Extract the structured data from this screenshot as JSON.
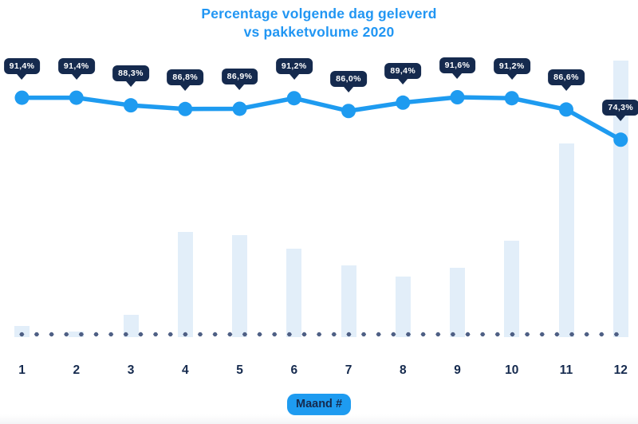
{
  "title": {
    "line1": "Percentage volgende dag geleverd",
    "line2": "vs pakketvolume 2020"
  },
  "x_axis_label": "Maand #",
  "colors": {
    "accent_blue": "#1E9BF0",
    "title_blue": "#2196F3",
    "navy": "#152A4E",
    "bar_fill": "#E2EEF9",
    "baseline_dot": "#4F6085",
    "tooltip_text": "#FFFFFF",
    "background": "#FFFFFF"
  },
  "chart_data": {
    "type": "combo",
    "title": "Percentage volgende dag geleverd vs pakketvolume 2020",
    "categories": [
      "1",
      "2",
      "3",
      "4",
      "5",
      "6",
      "7",
      "8",
      "9",
      "10",
      "11",
      "12"
    ],
    "xlabel": "Maand #",
    "grid": false,
    "legend": "none",
    "baseline": "dotted horizontal line along x-axis",
    "series": [
      {
        "name": "Percentage volgende dag geleverd",
        "type": "line",
        "unit": "%",
        "values": [
          91.4,
          91.4,
          88.3,
          86.8,
          86.9,
          91.2,
          86.0,
          89.4,
          91.6,
          91.2,
          86.6,
          74.3
        ],
        "point_labels": [
          "91,4%",
          "91,4%",
          "88,3%",
          "86,8%",
          "86,9%",
          "91,2%",
          "86,0%",
          "89,4%",
          "91,6%",
          "91,2%",
          "86,6%",
          "74,3%"
        ],
        "approx_value_range": [
          74,
          92
        ]
      },
      {
        "name": "pakketvolume 2020",
        "type": "bar",
        "unit": "relative volume (axis unlabeled, tallest month = 100)",
        "values": [
          4,
          2,
          8,
          38,
          37,
          32,
          26,
          22,
          25,
          35,
          70,
          100
        ]
      }
    ]
  }
}
